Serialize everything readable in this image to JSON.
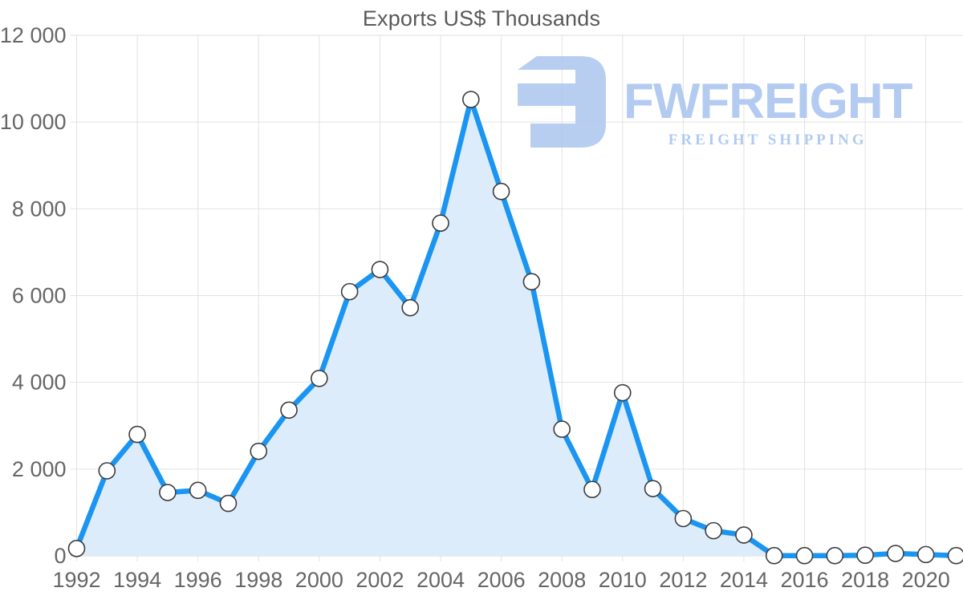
{
  "title": "Exports US$ Thousands",
  "watermark": {
    "brand": "FWFREIGHT",
    "tagline": "FREIGHT SHIPPING",
    "color": "#a8c4ee"
  },
  "chart_data": {
    "type": "area",
    "title": "Exports US$ Thousands",
    "xlabel": "",
    "ylabel": "",
    "x": [
      1992,
      1993,
      1994,
      1995,
      1996,
      1997,
      1998,
      1999,
      2000,
      2001,
      2002,
      2003,
      2004,
      2005,
      2006,
      2007,
      2008,
      2009,
      2010,
      2011,
      2012,
      2013,
      2014,
      2015,
      2016,
      2017,
      2018,
      2019,
      2020,
      2021
    ],
    "values": [
      170,
      1960,
      2800,
      1460,
      1510,
      1210,
      2410,
      3360,
      4090,
      6090,
      6600,
      5720,
      7670,
      10520,
      8400,
      6320,
      2920,
      1530,
      3760,
      1550,
      860,
      580,
      480,
      5,
      5,
      5,
      15,
      55,
      30,
      5
    ],
    "ylim": [
      0,
      12000
    ],
    "y_ticks": [
      0,
      2000,
      4000,
      6000,
      8000,
      10000,
      12000
    ],
    "y_tick_labels": [
      "0",
      "2 000",
      "4 000",
      "6 000",
      "8 000",
      "10 000",
      "12 000"
    ],
    "x_ticks": [
      1992,
      1994,
      1996,
      1998,
      2000,
      2002,
      2004,
      2006,
      2008,
      2010,
      2012,
      2014,
      2016,
      2018,
      2020
    ],
    "x_tick_labels": [
      "1992",
      "1994",
      "1996",
      "1998",
      "2000",
      "2002",
      "2004",
      "2006",
      "2008",
      "2010",
      "2012",
      "2014",
      "2016",
      "2018",
      "2020"
    ],
    "grid": true,
    "legend": "none",
    "line_color": "#1b95f2",
    "fill_color": "#ddecfa",
    "marker_fill": "#ffffff",
    "marker_stroke": "#3c3c3c",
    "grid_color": "#e2e2e2",
    "baseline_color": "#d4d4d4",
    "axis_label_color": "#666666"
  }
}
